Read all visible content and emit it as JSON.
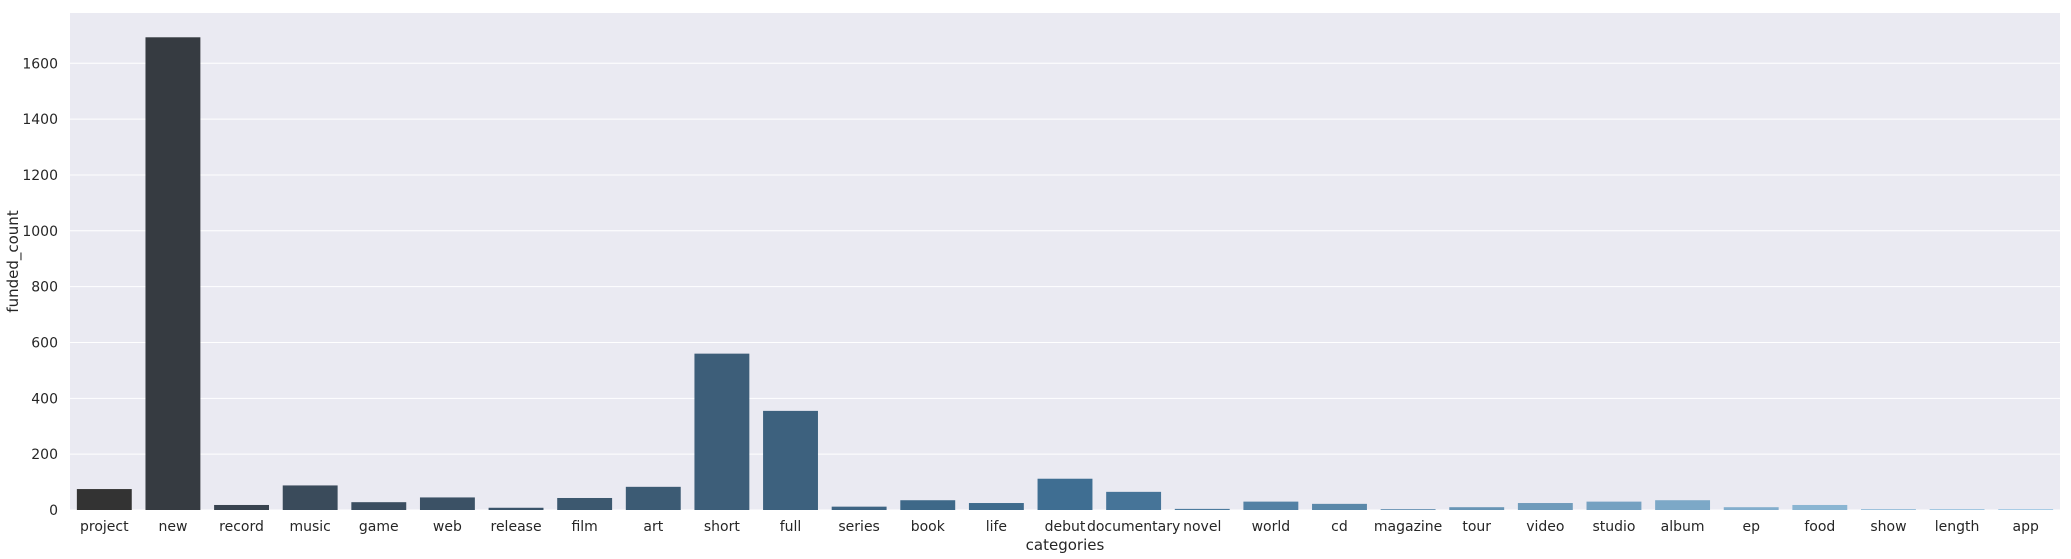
{
  "chart_data": {
    "type": "bar",
    "xlabel": "categories",
    "ylabel": "funded_count",
    "categories": [
      "project",
      "new",
      "record",
      "music",
      "game",
      "web",
      "release",
      "film",
      "art",
      "short",
      "full",
      "series",
      "book",
      "life",
      "debut",
      "documentary",
      "novel",
      "world",
      "cd",
      "magazine",
      "tour",
      "video",
      "studio",
      "album",
      "ep",
      "food",
      "show",
      "length",
      "app"
    ],
    "values": [
      75,
      1693,
      18,
      88,
      28,
      45,
      8,
      43,
      83,
      560,
      355,
      12,
      35,
      25,
      112,
      65,
      4,
      30,
      22,
      3,
      10,
      25,
      30,
      35,
      10,
      18,
      3,
      3,
      3
    ],
    "ylim": [
      0,
      1780
    ],
    "yticks": [
      "0",
      "200",
      "400",
      "600",
      "800",
      "1000",
      "1200",
      "1400",
      "1600"
    ],
    "grid": true,
    "legend": "none",
    "background_color": "#eaeaf2",
    "grid_color": "#ffffff",
    "palette": "dark-slate-to-light-blue gradient"
  }
}
